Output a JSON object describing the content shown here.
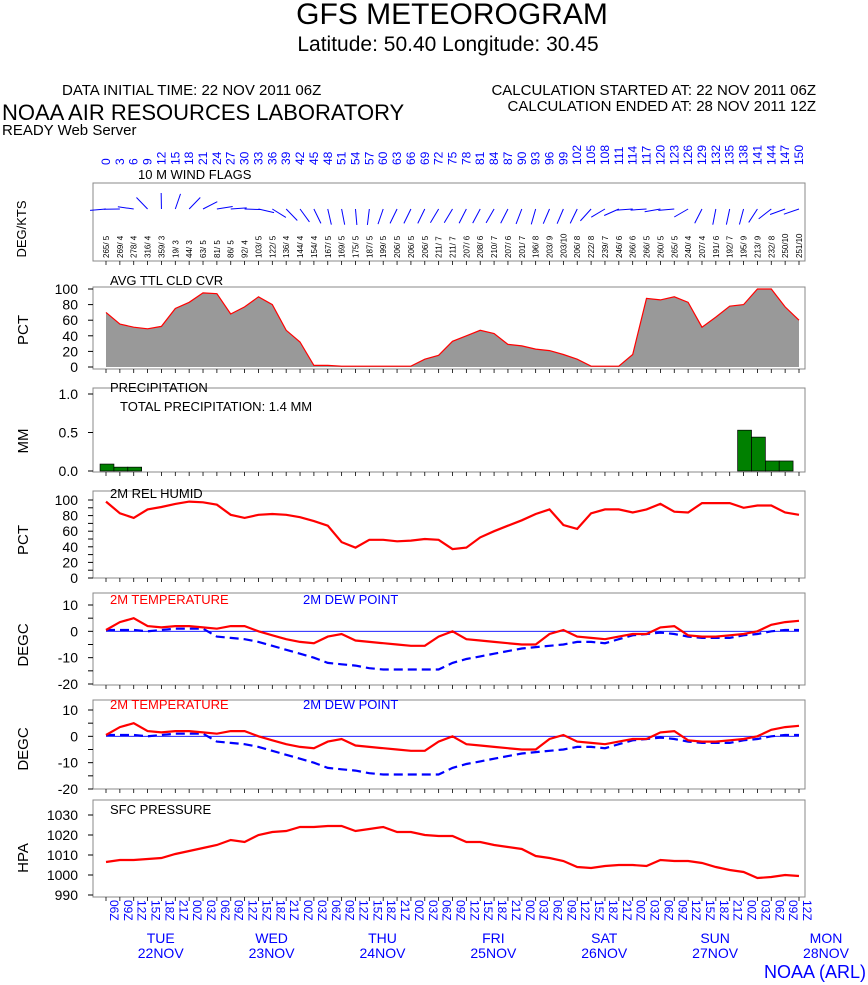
{
  "header": {
    "title": "GFS METEOROGRAM",
    "location": "Latitude: 50.40 Longitude:  30.45",
    "data_initial_time": "DATA INITIAL TIME: 22 NOV 2011 06Z",
    "calc_started": "CALCULATION STARTED AT: 22 NOV 2011 06Z",
    "calc_ended": "CALCULATION ENDED AT: 28 NOV 2011 12Z",
    "lab": "NOAA AIR RESOURCES LABORATORY",
    "server": "READY Web Server",
    "credit": "NOAA (ARL)"
  },
  "colors": {
    "red": "#ff0000",
    "blue": "#0000ff",
    "gray_fill": "#999999",
    "green": "#008000"
  },
  "chart_data": [
    {
      "type": "line",
      "name": "forecast-hours",
      "x": [
        0,
        3,
        6,
        9,
        12,
        15,
        18,
        21,
        24,
        27,
        30,
        33,
        36,
        39,
        42,
        45,
        48,
        51,
        54,
        57,
        60,
        63,
        66,
        69,
        72,
        75,
        78,
        81,
        84,
        87,
        90,
        93,
        96,
        99,
        102,
        105,
        108,
        111,
        114,
        117,
        120,
        123,
        126,
        129,
        132,
        135,
        138,
        141,
        144,
        147,
        150
      ],
      "tick_labels": [
        "0",
        "3",
        "6",
        "9",
        "12",
        "15",
        "18",
        "21",
        "24",
        "27",
        "30",
        "33",
        "36",
        "39",
        "42",
        "45",
        "48",
        "51",
        "54",
        "57",
        "60",
        "63",
        "66",
        "69",
        "72",
        "75",
        "78",
        "81",
        "84",
        "87",
        "90",
        "93",
        "96",
        "99",
        "102",
        "105",
        "108",
        "111",
        "114",
        "117",
        "120",
        "123",
        "126",
        "129",
        "132",
        "135",
        "138",
        "141",
        "144",
        "147",
        "150"
      ],
      "time_labels": [
        "06Z",
        "09Z",
        "12Z",
        "15Z",
        "18Z",
        "21Z",
        "00Z",
        "03Z",
        "06Z",
        "09Z",
        "12Z",
        "15Z",
        "18Z",
        "21Z",
        "00Z",
        "03Z",
        "06Z",
        "09Z",
        "12Z",
        "15Z",
        "18Z",
        "21Z",
        "00Z",
        "03Z",
        "06Z",
        "09Z",
        "12Z",
        "15Z",
        "18Z",
        "21Z",
        "00Z",
        "03Z",
        "06Z",
        "09Z",
        "12Z",
        "15Z",
        "18Z",
        "21Z",
        "00Z",
        "03Z",
        "06Z",
        "09Z",
        "12Z",
        "15Z",
        "18Z",
        "21Z",
        "00Z",
        "03Z",
        "06Z",
        "09Z",
        "12Z"
      ],
      "days": [
        {
          "name": "TUE",
          "date": "22NOV",
          "hour": 6
        },
        {
          "name": "WED",
          "date": "23NOV",
          "hour": 30
        },
        {
          "name": "THU",
          "date": "24NOV",
          "hour": 54
        },
        {
          "name": "FRI",
          "date": "25NOV",
          "hour": 78
        },
        {
          "name": "SAT",
          "date": "26NOV",
          "hour": 102
        },
        {
          "name": "SUN",
          "date": "27NOV",
          "hour": 126
        },
        {
          "name": "MON",
          "date": "28NOV",
          "hour": 150
        }
      ]
    },
    {
      "type": "table",
      "name": "wind-flags",
      "title": "10 M  WIND FLAGS",
      "ylabel": "DEG/KTS",
      "labels": [
        "265/ 5",
        "269/ 4",
        "278/ 4",
        "316/ 4",
        "359/ 3",
        "19/ 3",
        "44/ 3",
        "63/ 5",
        "81/ 5",
        "86/ 5",
        "92/ 4",
        "103/ 5",
        "122/ 5",
        "136/ 4",
        "144/ 4",
        "154/ 4",
        "167/ 5",
        "169/ 5",
        "175/ 5",
        "187/ 5",
        "199/ 5",
        "206/ 5",
        "206/ 5",
        "206/ 5",
        "211/ 7",
        "211/ 7",
        "207/ 6",
        "208/ 6",
        "210/ 7",
        "207/ 6",
        "201/ 7",
        "196/ 8",
        "203/ 9",
        "203/10",
        "206/ 8",
        "222/ 8",
        "239/ 7",
        "246/ 6",
        "266/ 6",
        "266/ 5",
        "260/ 5",
        "265/ 5",
        "240/ 4",
        "207/ 4",
        "191/ 6",
        "192/ 7",
        "195/ 9",
        "213/ 9",
        "232/ 8",
        "250/10",
        "251/10"
      ],
      "directions": [
        265,
        269,
        278,
        316,
        359,
        19,
        44,
        63,
        81,
        86,
        92,
        103,
        122,
        136,
        144,
        154,
        167,
        169,
        175,
        187,
        199,
        206,
        206,
        206,
        211,
        211,
        207,
        208,
        210,
        207,
        201,
        196,
        203,
        203,
        206,
        222,
        239,
        246,
        266,
        266,
        260,
        265,
        240,
        207,
        191,
        192,
        195,
        213,
        232,
        250,
        251
      ]
    },
    {
      "type": "area",
      "name": "cloud-cover",
      "title": "AVG TTL CLD CVR",
      "ylabel": "PCT",
      "ylim": [
        0,
        100
      ],
      "ticks": [
        0,
        20,
        40,
        60,
        80,
        100
      ],
      "tick_labels": [
        "0",
        "20",
        "40",
        "60",
        "80",
        "100"
      ],
      "values": [
        70,
        55,
        51,
        49,
        52,
        75,
        83,
        95,
        94,
        68,
        77,
        90,
        80,
        47,
        32,
        2,
        2,
        1,
        1,
        1,
        1,
        1,
        1,
        10,
        15,
        33,
        40,
        47,
        43,
        29,
        27,
        23,
        21,
        16,
        10,
        1,
        1,
        1,
        16,
        88,
        86,
        90,
        83,
        51,
        64,
        78,
        80,
        100,
        100,
        77,
        60
      ]
    },
    {
      "type": "bar",
      "name": "precipitation",
      "title": "PRECIPITATION",
      "subtitle": "TOTAL PRECIPITATION:   1.4 MM",
      "ylabel": "MM",
      "ylim": [
        0,
        1.0
      ],
      "ticks": [
        0,
        0.5,
        1.0
      ],
      "tick_labels": [
        "0.0",
        "0.5",
        "1.0"
      ],
      "values": [
        0.09,
        0.05,
        0.05,
        0,
        0,
        0,
        0,
        0,
        0,
        0,
        0,
        0,
        0,
        0,
        0,
        0,
        0,
        0,
        0,
        0,
        0,
        0,
        0,
        0,
        0,
        0,
        0,
        0,
        0,
        0,
        0,
        0,
        0,
        0,
        0,
        0,
        0,
        0,
        0,
        0,
        0,
        0,
        0,
        0,
        0,
        0,
        0.53,
        0.44,
        0.13,
        0.13,
        0
      ]
    },
    {
      "type": "line",
      "name": "relative-humidity",
      "title": "2M REL HUMID",
      "ylabel": "PCT",
      "ylim": [
        0,
        100
      ],
      "ticks": [
        0,
        10,
        20,
        30,
        40,
        50,
        60,
        70,
        80,
        90,
        100
      ],
      "tick_labels": [
        "0",
        "20",
        "40",
        "60",
        "80",
        "100"
      ],
      "values": [
        98,
        83,
        77,
        88,
        91,
        95,
        98,
        97,
        94,
        81,
        77,
        81,
        82,
        81,
        78,
        73,
        67,
        46,
        39,
        49,
        49,
        47,
        48,
        50,
        49,
        37,
        39,
        52,
        60,
        67,
        74,
        82,
        88,
        68,
        63,
        83,
        88,
        88,
        84,
        88,
        95,
        85,
        84,
        96,
        96,
        96,
        90,
        93,
        93,
        84,
        81
      ]
    },
    {
      "type": "line",
      "name": "temperature-1",
      "title_temp": "2M TEMPERATURE",
      "title_dew": "2M   DEW POINT",
      "ylabel": "DEGC",
      "ylim": [
        -20,
        10
      ],
      "ticks": [
        -20,
        -15,
        -10,
        -5,
        0,
        5,
        10
      ],
      "tick_labels": [
        "-20",
        "-10",
        "0",
        "10"
      ],
      "series": [
        {
          "name": "2M TEMPERATURE",
          "values": [
            0.5,
            3.5,
            5,
            2,
            1.5,
            2,
            2,
            1.5,
            1,
            2,
            2,
            0,
            -1.5,
            -3,
            -4,
            -4.5,
            -2,
            -1,
            -3.5,
            -4,
            -4.5,
            -5,
            -5.5,
            -5.5,
            -2,
            0,
            -3,
            -3.5,
            -4,
            -4.5,
            -5,
            -5,
            -1,
            0.5,
            -2,
            -2.5,
            -3,
            -2,
            -1,
            -1,
            1.5,
            2,
            -1.5,
            -2,
            -2,
            -1.5,
            -1,
            0,
            2.5,
            3.5,
            4
          ]
        },
        {
          "name": "2M   DEW POINT",
          "values": [
            0.5,
            0.5,
            0.5,
            0,
            0.5,
            1,
            1,
            1,
            -2,
            -2.5,
            -3,
            -4,
            -5.5,
            -7,
            -8.5,
            -10,
            -12,
            -12.5,
            -13,
            -14,
            -14.5,
            -14.5,
            -14.5,
            -14.5,
            -14.5,
            -12,
            -10.5,
            -9.5,
            -8.5,
            -7.5,
            -6.5,
            -6,
            -5.5,
            -5,
            -4,
            -4,
            -4.5,
            -3,
            -1.5,
            -1,
            -0.5,
            -1,
            -2,
            -2.5,
            -2.5,
            -2.5,
            -1.5,
            -1,
            0,
            0.5,
            0.5
          ]
        }
      ]
    },
    {
      "type": "line",
      "name": "temperature-2",
      "title_temp": "2M TEMPERATURE",
      "title_dew": "2M   DEW POINT",
      "ylabel": "DEGC",
      "ylim": [
        -20,
        10
      ],
      "ticks": [
        -20,
        -15,
        -10,
        -5,
        0,
        5,
        10
      ],
      "tick_labels": [
        "-20",
        "-10",
        "0",
        "10"
      ],
      "series": [
        {
          "name": "2M TEMPERATURE",
          "values": [
            0.5,
            3.5,
            5,
            2,
            1.5,
            2,
            2,
            1.5,
            1,
            2,
            2,
            0,
            -1.5,
            -3,
            -4,
            -4.5,
            -2,
            -1,
            -3.5,
            -4,
            -4.5,
            -5,
            -5.5,
            -5.5,
            -2,
            0,
            -3,
            -3.5,
            -4,
            -4.5,
            -5,
            -5,
            -1,
            0.5,
            -2,
            -2.5,
            -3,
            -2,
            -1,
            -1,
            1.5,
            2,
            -1.5,
            -2,
            -2,
            -1.5,
            -1,
            0,
            2.5,
            3.5,
            4
          ]
        },
        {
          "name": "2M   DEW POINT",
          "values": [
            0.5,
            0.5,
            0.5,
            0,
            0.5,
            1,
            1,
            1,
            -2,
            -2.5,
            -3,
            -4,
            -5.5,
            -7,
            -8.5,
            -10,
            -12,
            -12.5,
            -13,
            -14,
            -14.5,
            -14.5,
            -14.5,
            -14.5,
            -14.5,
            -12,
            -10.5,
            -9.5,
            -8.5,
            -7.5,
            -6.5,
            -6,
            -5.5,
            -5,
            -4,
            -4,
            -4.5,
            -3,
            -1.5,
            -1,
            -0.5,
            -1,
            -2,
            -2.5,
            -2.5,
            -2.5,
            -1.5,
            -1,
            0,
            0.5,
            0.5
          ]
        }
      ]
    },
    {
      "type": "line",
      "name": "surface-pressure",
      "title": "SFC PRESSURE",
      "ylabel": "HPA",
      "ylim": [
        990,
        1030
      ],
      "ticks": [
        990,
        1000,
        1010,
        1020,
        1030
      ],
      "tick_labels": [
        "990",
        "1000",
        "1010",
        "1020",
        "1030"
      ],
      "values": [
        1006.5,
        1007.5,
        1007.5,
        1008,
        1008.5,
        1010.5,
        1012,
        1013.5,
        1015,
        1017.5,
        1016.5,
        1020,
        1021.5,
        1022,
        1024,
        1024,
        1024.5,
        1024.5,
        1022,
        1023,
        1024,
        1021.5,
        1021.5,
        1020,
        1019.5,
        1019.5,
        1016.5,
        1016.5,
        1015,
        1014,
        1013,
        1009.5,
        1008.5,
        1007,
        1004,
        1003.5,
        1004.5,
        1005,
        1005,
        1004.5,
        1007.5,
        1007,
        1007,
        1006,
        1004,
        1002.5,
        1001.5,
        998.5,
        999,
        1000,
        999.5
      ]
    }
  ]
}
